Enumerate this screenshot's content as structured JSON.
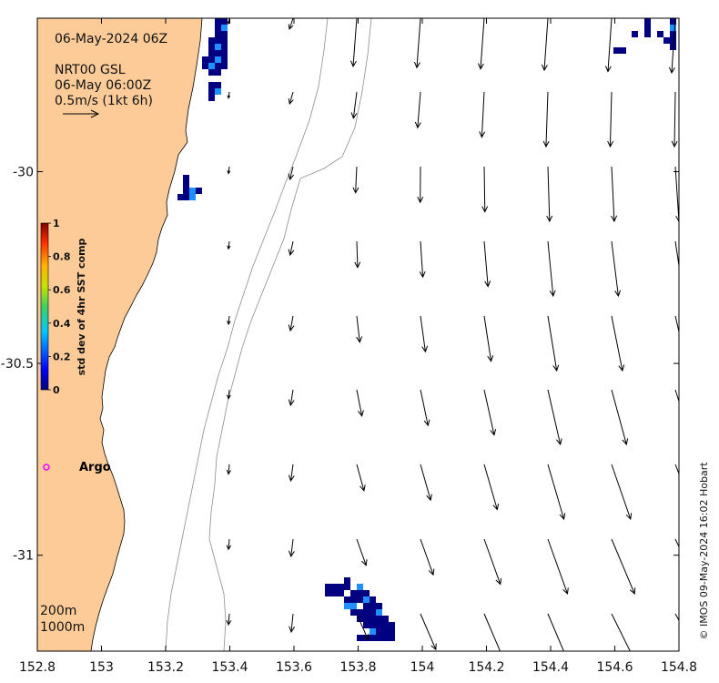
{
  "map": {
    "date_title": "06-May-2024 06Z",
    "current_product": "NRT00 GSL",
    "current_time": "06-May 06:00Z",
    "scale_label": "0.5m/s (1kt 6h)",
    "lon_range": [
      152.8,
      154.8
    ],
    "lat_range": [
      -31.25,
      -29.6
    ],
    "lon_ticks": [
      "152.8",
      "153",
      "153.2",
      "153.4",
      "153.6",
      "153.8",
      "154",
      "154.2",
      "154.4",
      "154.6",
      "154.8"
    ],
    "lat_ticks": [
      "-30",
      "-30.5",
      "-31"
    ],
    "colors": {
      "land": "#fccb98",
      "sst_low": "#000080",
      "sst_mid": "#1e90ff",
      "argo": "#ff00ff"
    }
  },
  "colorbar": {
    "label": "std dev of 4hr SST comp",
    "ticks": [
      "0",
      "0.2",
      "0.4",
      "0.6",
      "0.8",
      "1"
    ]
  },
  "argo": {
    "label": "Argo"
  },
  "depth_contours": {
    "shallow": "200m",
    "deep": "1000m"
  },
  "credit": "© IMOS 09-May-2024 16:02 Hobart"
}
